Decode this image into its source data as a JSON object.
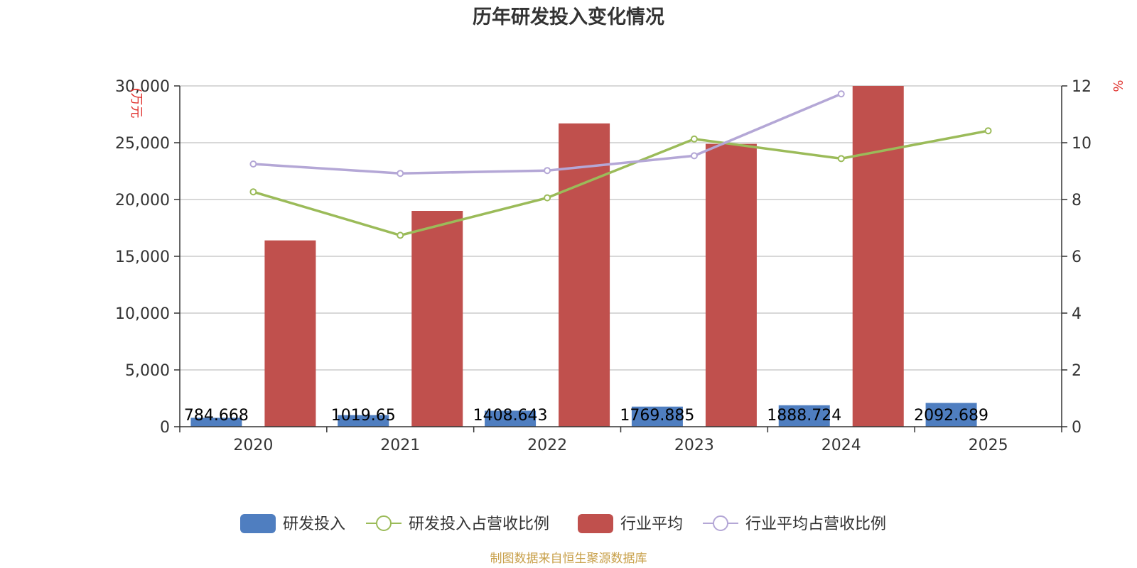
{
  "chart_data": {
    "type": "bar",
    "title": "历年研发投入变化情况",
    "categories": [
      "2020",
      "2021",
      "2022",
      "2023",
      "2024",
      "2025"
    ],
    "y_left": {
      "unit": "(万元",
      "ylim": [
        0,
        30000
      ],
      "ticks": [
        "0",
        "5,000",
        "10,000",
        "15,000",
        "20,000",
        "25,000",
        "30,000"
      ],
      "tick_values": [
        0,
        5000,
        10000,
        15000,
        20000,
        25000,
        30000
      ]
    },
    "y_right": {
      "unit": "%",
      "ylim": [
        0,
        12
      ],
      "ticks": [
        "0",
        "2",
        "4",
        "6",
        "8",
        "10",
        "12"
      ],
      "tick_values": [
        0,
        2,
        4,
        6,
        8,
        10,
        12
      ]
    },
    "grid": true,
    "legend_position": "bottom-center",
    "series": [
      {
        "name": "研发投入",
        "kind": "bar",
        "axis": "left",
        "color": "#4f7ec0",
        "values": [
          784.668,
          1019.65,
          1408.643,
          1769.885,
          1888.724,
          2092.689
        ],
        "labels": [
          "784.668",
          "1019.65",
          "1408.643",
          "1769.885",
          "1888.724",
          "2092.689"
        ]
      },
      {
        "name": "研发投入占营收比例",
        "kind": "line",
        "axis": "right",
        "color": "#9bbb59",
        "values": [
          8.27,
          6.74,
          8.06,
          10.13,
          9.44,
          10.42
        ]
      },
      {
        "name": "行业平均",
        "kind": "bar",
        "axis": "left",
        "color": "#c0504d",
        "values": [
          16400,
          19000,
          26700,
          24900,
          30000,
          null
        ]
      },
      {
        "name": "行业平均占营收比例",
        "kind": "line",
        "axis": "right",
        "color": "#b4a7d6",
        "values": [
          9.25,
          8.92,
          9.02,
          9.54,
          11.72,
          null
        ]
      }
    ]
  },
  "footer": {
    "source": "制图数据来自恒生聚源数据库"
  }
}
